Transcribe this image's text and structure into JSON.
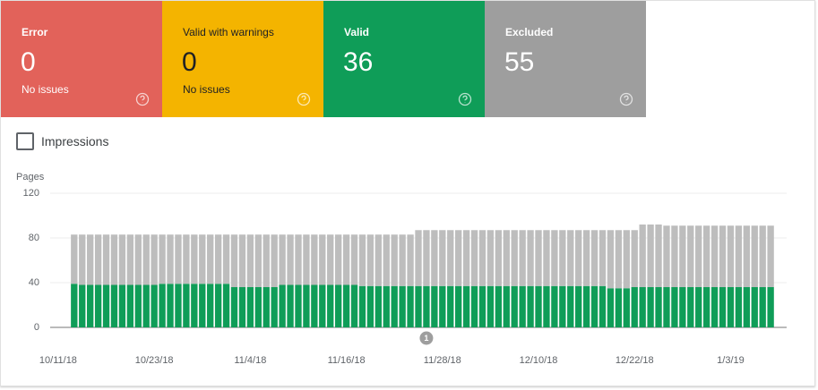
{
  "tiles": [
    {
      "label": "Error",
      "value": "0",
      "status": "No issues"
    },
    {
      "label": "Valid with warnings",
      "value": "0",
      "status": "No issues"
    },
    {
      "label": "Valid",
      "value": "36"
    },
    {
      "label": "Excluded",
      "value": "55"
    }
  ],
  "checkbox": {
    "label": "Impressions"
  },
  "chart_data": {
    "type": "stacked_bar",
    "y_label": "Pages",
    "x": [
      "10/13/18",
      "10/14/18",
      "10/15/18",
      "10/16/18",
      "10/17/18",
      "10/18/18",
      "10/19/18",
      "10/20/18",
      "10/21/18",
      "10/22/18",
      "10/23/18",
      "10/24/18",
      "10/25/18",
      "10/26/18",
      "10/27/18",
      "10/28/18",
      "10/29/18",
      "10/30/18",
      "10/31/18",
      "11/1/18",
      "11/2/18",
      "11/3/18",
      "11/4/18",
      "11/5/18",
      "11/6/18",
      "11/7/18",
      "11/8/18",
      "11/9/18",
      "11/10/18",
      "11/11/18",
      "11/12/18",
      "11/13/18",
      "11/14/18",
      "11/15/18",
      "11/16/18",
      "11/17/18",
      "11/18/18",
      "11/19/18",
      "11/20/18",
      "11/21/18",
      "11/22/18",
      "11/23/18",
      "11/24/18",
      "11/25/18",
      "11/26/18",
      "11/27/18",
      "11/28/18",
      "11/29/18",
      "11/30/18",
      "12/1/18",
      "12/2/18",
      "12/3/18",
      "12/4/18",
      "12/5/18",
      "12/6/18",
      "12/7/18",
      "12/8/18",
      "12/9/18",
      "12/10/18",
      "12/11/18",
      "12/12/18",
      "12/13/18",
      "12/14/18",
      "12/15/18",
      "12/16/18",
      "12/17/18",
      "12/18/18",
      "12/19/18",
      "12/20/18",
      "12/21/18",
      "12/22/18",
      "12/23/18",
      "12/24/18",
      "12/25/18",
      "12/26/18",
      "12/27/18",
      "12/28/18",
      "12/29/18",
      "12/30/18",
      "12/31/18",
      "1/1/19",
      "1/2/19",
      "1/3/19",
      "1/4/19",
      "1/5/19",
      "1/6/19",
      "1/7/19",
      "1/8/19"
    ],
    "series": [
      {
        "color": "#0f9d58",
        "values": [
          39,
          38,
          38,
          38,
          38,
          38,
          38,
          38,
          38,
          38,
          38,
          39,
          39,
          39,
          39,
          39,
          39,
          39,
          39,
          39,
          36,
          36,
          36,
          36,
          36,
          36,
          38,
          38,
          38,
          38,
          38,
          38,
          38,
          38,
          38,
          38,
          37,
          37,
          37,
          37,
          37,
          37,
          37,
          37,
          37,
          37,
          37,
          37,
          37,
          37,
          37,
          37,
          37,
          37,
          37,
          37,
          37,
          37,
          37,
          37,
          37,
          37,
          37,
          37,
          37,
          37,
          37,
          35,
          35,
          35,
          36,
          36,
          36,
          36,
          36,
          36,
          36,
          36,
          36,
          36,
          36,
          36,
          36,
          36,
          36,
          36,
          36,
          36
        ]
      },
      {
        "color": "#bdbdbd",
        "values": [
          44,
          45,
          45,
          45,
          45,
          45,
          45,
          45,
          45,
          45,
          45,
          44,
          44,
          44,
          44,
          44,
          44,
          44,
          44,
          44,
          47,
          47,
          47,
          47,
          47,
          47,
          45,
          45,
          45,
          45,
          45,
          45,
          45,
          45,
          45,
          45,
          46,
          46,
          46,
          46,
          46,
          46,
          46,
          50,
          50,
          50,
          50,
          50,
          50,
          50,
          50,
          50,
          50,
          50,
          50,
          50,
          50,
          50,
          50,
          50,
          50,
          50,
          50,
          50,
          50,
          50,
          50,
          52,
          52,
          52,
          51,
          56,
          56,
          56,
          55,
          55,
          55,
          55,
          55,
          55,
          55,
          55,
          55,
          55,
          55,
          55,
          55,
          55
        ]
      }
    ],
    "xlim": [
      "10/10/18",
      "1/10/19"
    ],
    "xticks": [
      "10/11/18",
      "10/23/18",
      "11/4/18",
      "11/16/18",
      "11/28/18",
      "12/10/18",
      "12/22/18",
      "1/3/19"
    ],
    "ylim": [
      0,
      120
    ],
    "yticks": [
      0,
      40,
      80,
      120
    ],
    "grid": true,
    "annotations": [
      {
        "label": "1",
        "x": "11/26/18"
      }
    ]
  }
}
